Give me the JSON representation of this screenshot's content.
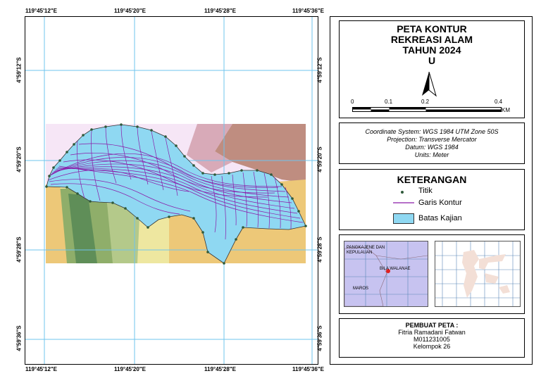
{
  "top_coords": [
    "119°45'12\"E",
    "119°45'20\"E",
    "119°45'28\"E",
    "119°45'36\"E"
  ],
  "bottom_coords": [
    "119°45'12\"E",
    "119°45'20\"E",
    "119°45'28\"E",
    "119°45'36\"E"
  ],
  "left_coords": [
    "4°59'12\"S",
    "4°59'20\"S",
    "4°59'28\"S",
    "4°59'36\"S"
  ],
  "right_coords": [
    "4°59'12\"S",
    "4°59'20\"S",
    "4°59'28\"S",
    "4°59'36\"S"
  ],
  "title": {
    "line1": "PETA KONTUR",
    "line2": "REKREASI ALAM",
    "line3": "TAHUN 2024",
    "north": "U"
  },
  "scale": {
    "labels": [
      "0",
      "0.1",
      "0.2",
      "0.4"
    ],
    "unit": "KM"
  },
  "coordinate_system": {
    "line1": "Coordinate System: WGS 1984 UTM Zone 50S",
    "line2": "Projection: Transverse Mercator",
    "line3": "Datum: WGS 1984",
    "line4": "Units: Meter"
  },
  "legend": {
    "title": "KETERANGAN",
    "items": [
      "Titik",
      "Garis Kontur",
      "Batas Kajian"
    ]
  },
  "inset": {
    "label1": "PANGKAJENE DAN KEPULAUAN",
    "label2": "BILA WALANAE",
    "label3": "MAROS"
  },
  "maker": {
    "title": "PEMBUAT PETA :",
    "name": "Fitria Ramadani Fatwan",
    "id": "M011231005",
    "group": "Kelompok 26"
  },
  "colors": {
    "boundary_fill": "#8fd8f2",
    "contour": "#8a1aa8",
    "grid": "#6fc4ee",
    "point": "#2f5a3a",
    "inset_bg": "#c7c3f0"
  }
}
